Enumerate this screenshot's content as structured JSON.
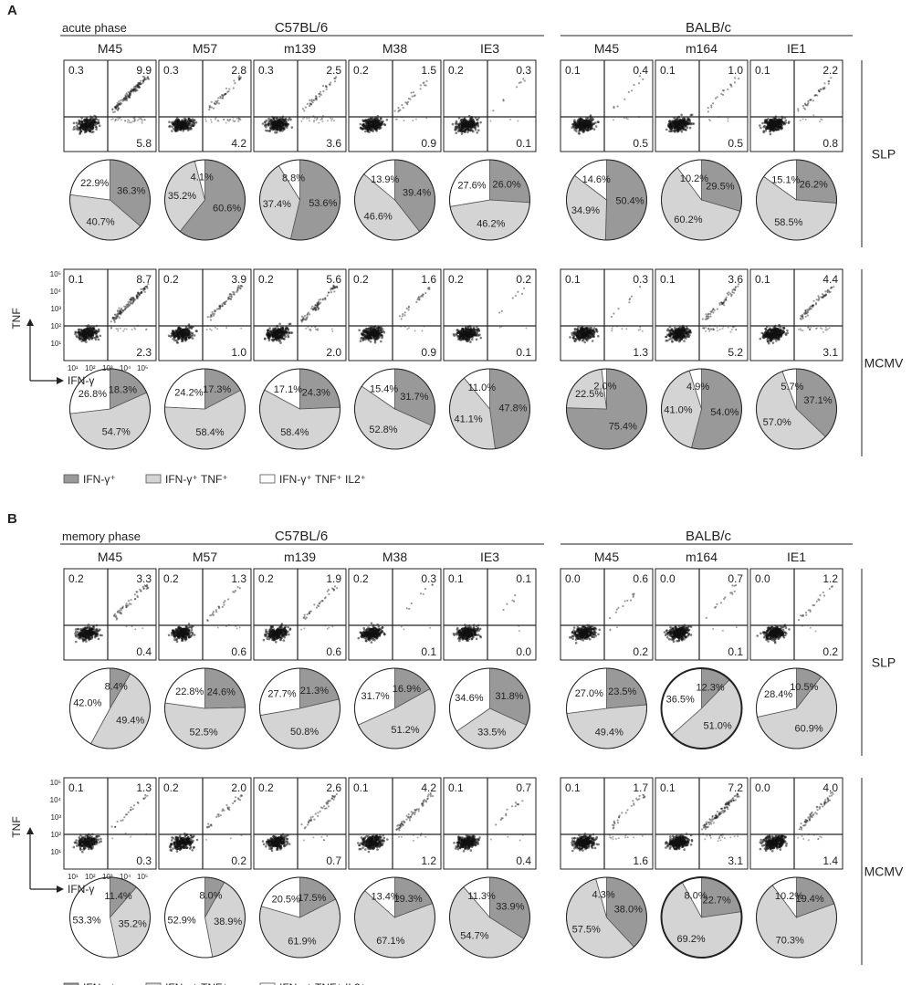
{
  "colors": {
    "ifng": "#999999",
    "ifng_tnf": "#d4d4d4",
    "ifng_tnf_il2": "#ffffff",
    "ink": "#222222"
  },
  "axes": {
    "x_label": "IFN-γ",
    "y_label": "TNF",
    "x_ticks": [
      "10¹",
      "10²",
      "10³",
      "10⁴",
      "10⁵"
    ],
    "y_ticks": [
      "10⁵",
      "10⁴",
      "10³",
      "10²",
      "10¹"
    ]
  },
  "legend": [
    "IFN-γ⁺",
    "IFN-γ⁺ TNF⁺",
    "IFN-γ⁺ TNF⁺ IL2⁺"
  ],
  "row_labels": [
    "SLP",
    "MCMV"
  ],
  "chart_data": [
    {
      "type": "pie",
      "panel": "A",
      "phase": "acute phase",
      "strains": [
        "C57BL/6",
        "BALB/c"
      ],
      "columns": [
        {
          "strain": "C57BL/6",
          "epitope": "M45"
        },
        {
          "strain": "C57BL/6",
          "epitope": "M57"
        },
        {
          "strain": "C57BL/6",
          "epitope": "m139"
        },
        {
          "strain": "C57BL/6",
          "epitope": "M38"
        },
        {
          "strain": "C57BL/6",
          "epitope": "IE3"
        },
        {
          "strain": "BALB/c",
          "epitope": "M45"
        },
        {
          "strain": "BALB/c",
          "epitope": "m164"
        },
        {
          "strain": "BALB/c",
          "epitope": "IE1"
        }
      ],
      "rows": [
        {
          "label": "SLP",
          "quadrants": [
            [
              "0.3",
              "9.9",
              "5.8"
            ],
            [
              "0.3",
              "2.8",
              "4.2"
            ],
            [
              "0.3",
              "2.5",
              "3.6"
            ],
            [
              "0.2",
              "1.5",
              "0.9"
            ],
            [
              "0.2",
              "0.3",
              "0.1"
            ],
            [
              "0.1",
              "0.4",
              "0.5"
            ],
            [
              "0.1",
              "1.0",
              "0.5"
            ],
            [
              "0.1",
              "2.2",
              "0.8"
            ]
          ],
          "pies": [
            [
              "36.3%",
              "40.7%",
              "22.9%"
            ],
            [
              "60.6%",
              "35.2%",
              "4.1%"
            ],
            [
              "53.6%",
              "37.4%",
              "8.8%"
            ],
            [
              "39.4%",
              "46.6%",
              "13.9%"
            ],
            [
              "26.0%",
              "46.2%",
              "27.6%"
            ],
            [
              "50.4%",
              "34.9%",
              "14.6%"
            ],
            [
              "29.5%",
              "60.2%",
              "10.2%"
            ],
            [
              "26.2%",
              "58.5%",
              "15.1%"
            ]
          ]
        },
        {
          "label": "MCMV",
          "quadrants": [
            [
              "0.1",
              "8.7",
              "2.3"
            ],
            [
              "0.2",
              "3.9",
              "1.0"
            ],
            [
              "0.2",
              "5.6",
              "2.0"
            ],
            [
              "0.2",
              "1.6",
              "0.9"
            ],
            [
              "0.2",
              "0.2",
              "0.1"
            ],
            [
              "0.1",
              "0.3",
              "1.3"
            ],
            [
              "0.1",
              "3.6",
              "5.2"
            ],
            [
              "0.1",
              "4.4",
              "3.1"
            ]
          ],
          "pies": [
            [
              "18.3%",
              "54.7%",
              "26.8%"
            ],
            [
              "17.3%",
              "58.4%",
              "24.2%"
            ],
            [
              "24.3%",
              "58.4%",
              "17.1%"
            ],
            [
              "31.7%",
              "52.8%",
              "15.4%"
            ],
            [
              "47.8%",
              "41.1%",
              "11.0%"
            ],
            [
              "75.4%",
              "22.5%",
              "2.0%"
            ],
            [
              "54.0%",
              "41.0%",
              "4.9%"
            ],
            [
              "37.1%",
              "57.0%",
              "5.7%"
            ]
          ]
        }
      ]
    },
    {
      "type": "pie",
      "panel": "B",
      "phase": "memory phase",
      "strains": [
        "C57BL/6",
        "BALB/c"
      ],
      "columns": [
        {
          "strain": "C57BL/6",
          "epitope": "M45"
        },
        {
          "strain": "C57BL/6",
          "epitope": "M57"
        },
        {
          "strain": "C57BL/6",
          "epitope": "m139"
        },
        {
          "strain": "C57BL/6",
          "epitope": "M38"
        },
        {
          "strain": "C57BL/6",
          "epitope": "IE3"
        },
        {
          "strain": "BALB/c",
          "epitope": "M45"
        },
        {
          "strain": "BALB/c",
          "epitope": "m164"
        },
        {
          "strain": "BALB/c",
          "epitope": "IE1"
        }
      ],
      "rows": [
        {
          "label": "SLP",
          "quadrants": [
            [
              "0.2",
              "3.3",
              "0.4"
            ],
            [
              "0.2",
              "1.3",
              "0.6"
            ],
            [
              "0.2",
              "1.9",
              "0.6"
            ],
            [
              "0.2",
              "0.3",
              "0.1"
            ],
            [
              "0.1",
              "0.1",
              "0.0"
            ],
            [
              "0.0",
              "0.6",
              "0.2"
            ],
            [
              "0.0",
              "0.7",
              "0.1"
            ],
            [
              "0.0",
              "1.2",
              "0.2"
            ]
          ],
          "pies": [
            [
              "8.4%",
              "49.4%",
              "42.0%"
            ],
            [
              "24.6%",
              "52.5%",
              "22.8%"
            ],
            [
              "21.3%",
              "50.8%",
              "27.7%"
            ],
            [
              "16.9%",
              "51.2%",
              "31.7%"
            ],
            [
              "31.8%",
              "33.5%",
              "34.6%"
            ],
            [
              "23.5%",
              "49.4%",
              "27.0%"
            ],
            [
              "12.3%",
              "51.0%",
              "36.5%"
            ],
            [
              "10.5%",
              "60.9%",
              "28.4%"
            ]
          ]
        },
        {
          "label": "MCMV",
          "quadrants": [
            [
              "0.1",
              "1.3",
              "0.3"
            ],
            [
              "0.2",
              "2.0",
              "0.2"
            ],
            [
              "0.2",
              "2.6",
              "0.7"
            ],
            [
              "0.1",
              "4.2",
              "1.2"
            ],
            [
              "0.1",
              "0.7",
              "0.4"
            ],
            [
              "0.1",
              "1.7",
              "1.6"
            ],
            [
              "0.1",
              "7.2",
              "3.1"
            ],
            [
              "0.0",
              "4.0",
              "1.4"
            ]
          ],
          "pies": [
            [
              "11.4%",
              "35.2%",
              "53.3%"
            ],
            [
              "8.0%",
              "38.9%",
              "52.9%"
            ],
            [
              "17.5%",
              "61.9%",
              "20.5%"
            ],
            [
              "19.3%",
              "67.1%",
              "13.4%"
            ],
            [
              "33.9%",
              "54.7%",
              "11.3%"
            ],
            [
              "38.0%",
              "57.5%",
              "4.3%"
            ],
            [
              "22.7%",
              "69.2%",
              "8.0%"
            ],
            [
              "19.4%",
              "70.3%",
              "10.2%"
            ]
          ]
        }
      ]
    }
  ]
}
